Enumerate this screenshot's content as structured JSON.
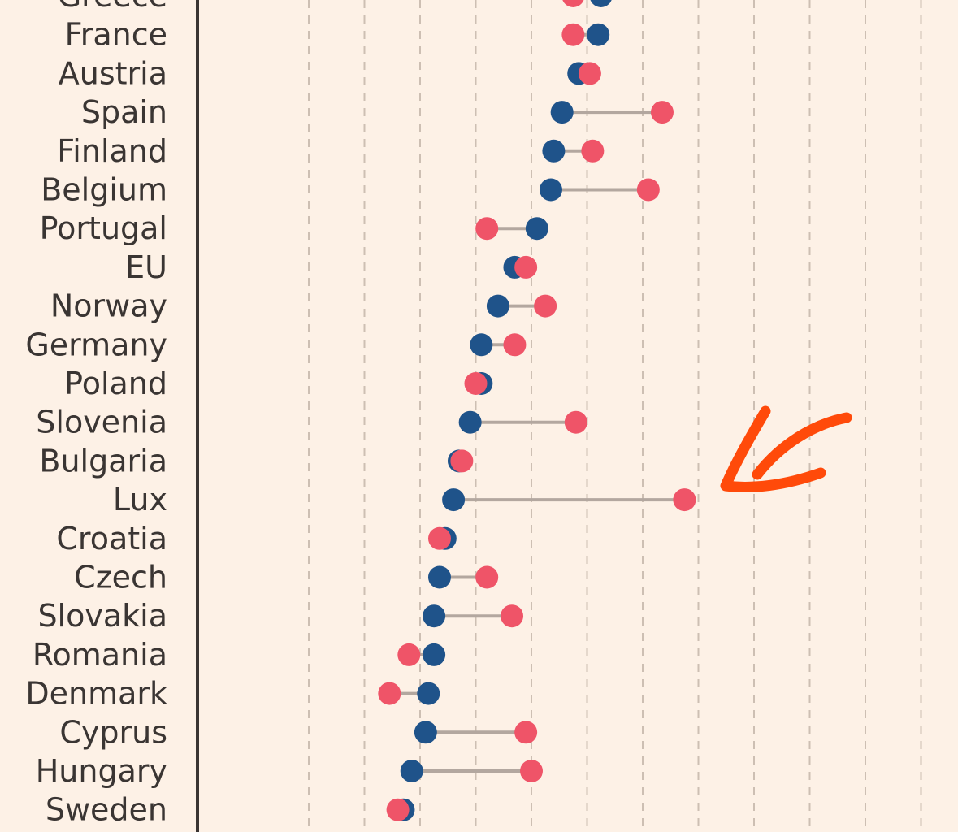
{
  "chart_data": {
    "type": "dumbbell",
    "title": "",
    "xlabel": "",
    "ylabel": "",
    "xlim": [
      -3.25,
      9.5
    ],
    "gridlines_at": [
      -2,
      -1,
      0,
      1,
      2,
      3,
      4,
      5,
      6,
      7,
      8,
      9
    ],
    "series": [
      {
        "name": "blue",
        "color": "#1f538a"
      },
      {
        "name": "red",
        "color": "#ef5468"
      }
    ],
    "rows": [
      {
        "label": "Greece",
        "blue": 3.25,
        "red": 2.75
      },
      {
        "label": "France",
        "blue": 3.2,
        "red": 2.75
      },
      {
        "label": "Austria",
        "blue": 2.85,
        "red": 3.05
      },
      {
        "label": "Spain",
        "blue": 2.55,
        "red": 4.35
      },
      {
        "label": "Finland",
        "blue": 2.4,
        "red": 3.1
      },
      {
        "label": "Belgium",
        "blue": 2.35,
        "red": 4.1
      },
      {
        "label": "Portugal",
        "blue": 2.1,
        "red": 1.2
      },
      {
        "label": "EU",
        "blue": 1.7,
        "red": 1.9
      },
      {
        "label": "Norway",
        "blue": 1.4,
        "red": 2.25
      },
      {
        "label": "Germany",
        "blue": 1.1,
        "red": 1.7
      },
      {
        "label": "Poland",
        "blue": 1.1,
        "red": 1.0
      },
      {
        "label": "Slovenia",
        "blue": 0.9,
        "red": 2.8
      },
      {
        "label": "Bulgaria",
        "blue": 0.7,
        "red": 0.75
      },
      {
        "label": "Lux",
        "blue": 0.6,
        "red": 4.75
      },
      {
        "label": "Croatia",
        "blue": 0.45,
        "red": 0.35
      },
      {
        "label": "Czech",
        "blue": 0.35,
        "red": 1.2
      },
      {
        "label": "Slovakia",
        "blue": 0.25,
        "red": 1.65
      },
      {
        "label": "Romania",
        "blue": 0.25,
        "red": -0.2
      },
      {
        "label": "Denmark",
        "blue": 0.15,
        "red": -0.55
      },
      {
        "label": "Cyprus",
        "blue": 0.1,
        "red": 1.9
      },
      {
        "label": "Hungary",
        "blue": -0.15,
        "red": 2.0
      },
      {
        "label": "Sweden",
        "blue": -0.3,
        "red": -0.4
      }
    ],
    "annotation": {
      "type": "hand-drawn-arrow",
      "color": "#ff4a0a",
      "points_to": "Lux"
    }
  }
}
